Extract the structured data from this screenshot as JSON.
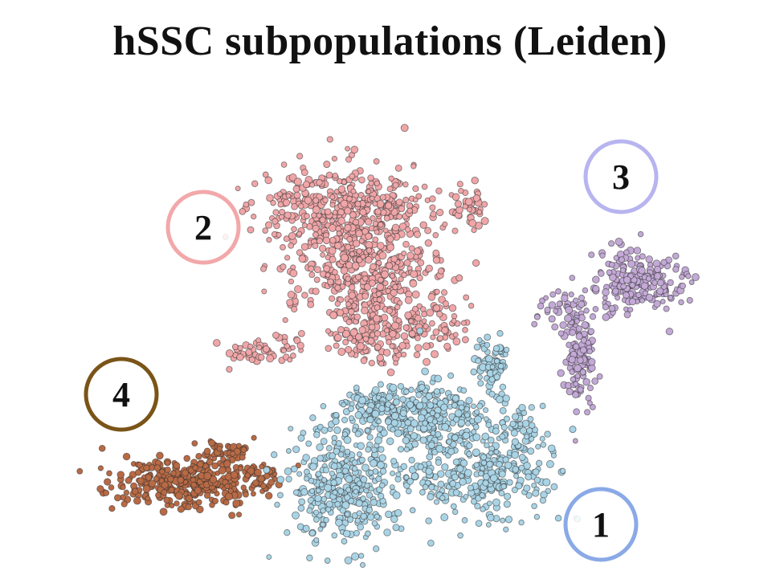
{
  "title": "hSSC subpopulations (Leiden)",
  "chart_data": {
    "type": "scatter",
    "title": "hSSC subpopulations (Leiden)",
    "xlabel": "",
    "ylabel": "",
    "grid": false,
    "axes_visible": false,
    "legend": "none (cluster numbers circled next to each cluster)",
    "clusters": [
      {
        "label": "1",
        "color": "#a9d4e6",
        "ring_color": "#8aa9e6",
        "region": "bottom-center"
      },
      {
        "label": "2",
        "color": "#f0a6a8",
        "ring_color": "#f2a8aa",
        "region": "upper-center"
      },
      {
        "label": "3",
        "color": "#c3a9d6",
        "ring_color": "#b7b4f0",
        "region": "right"
      },
      {
        "label": "4",
        "color": "#b86a45",
        "ring_color": "#7a5418",
        "region": "lower-left"
      }
    ]
  }
}
